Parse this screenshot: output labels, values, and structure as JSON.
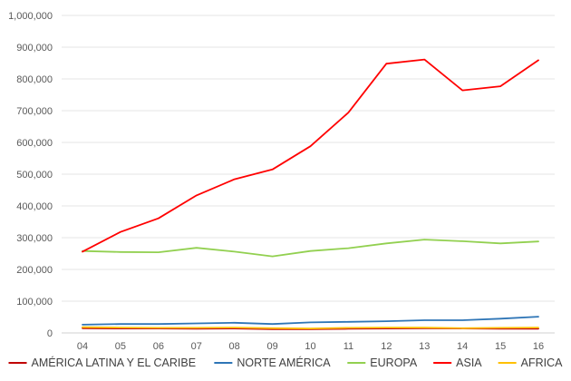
{
  "chart_data": {
    "type": "line",
    "title": "",
    "xlabel": "",
    "ylabel": "",
    "categories": [
      "04",
      "05",
      "06",
      "07",
      "08",
      "09",
      "10",
      "11",
      "12",
      "13",
      "14",
      "15",
      "16"
    ],
    "ylim": [
      0,
      1000000
    ],
    "yticks": [
      0,
      100000,
      200000,
      300000,
      400000,
      500000,
      600000,
      700000,
      800000,
      900000,
      1000000
    ],
    "ytick_labels": [
      "0",
      "100,000",
      "200,000",
      "300,000",
      "400,000",
      "500,000",
      "600,000",
      "700,000",
      "800,000",
      "900,000",
      "1,000,000"
    ],
    "grid": true,
    "legend_position": "bottom",
    "series": [
      {
        "name": "AMÉRICA LATINA Y EL CARIBE",
        "color": "#c00000",
        "values": [
          15000,
          14000,
          14000,
          13000,
          14000,
          12000,
          12000,
          13000,
          14000,
          15000,
          14000,
          13000,
          13000
        ]
      },
      {
        "name": "NORTE AMÉRICA",
        "color": "#2e75b6",
        "values": [
          26000,
          28000,
          28000,
          30000,
          32000,
          28000,
          33000,
          35000,
          37000,
          40000,
          40000,
          45000,
          51000
        ]
      },
      {
        "name": "EUROPA",
        "color": "#92d050",
        "values": [
          258000,
          255000,
          254000,
          268000,
          256000,
          241000,
          258000,
          267000,
          282000,
          294000,
          289000,
          282000,
          288000
        ]
      },
      {
        "name": "ASIA",
        "color": "#ff0000",
        "values": [
          256000,
          318000,
          361000,
          433000,
          484000,
          515000,
          588000,
          694000,
          848000,
          861000,
          764000,
          777000,
          859000
        ]
      },
      {
        "name": "AFRICA",
        "color": "#ffc000",
        "values": [
          18000,
          17000,
          16000,
          16000,
          17000,
          15000,
          14000,
          16000,
          17000,
          17000,
          15000,
          16000,
          17000
        ]
      }
    ]
  }
}
